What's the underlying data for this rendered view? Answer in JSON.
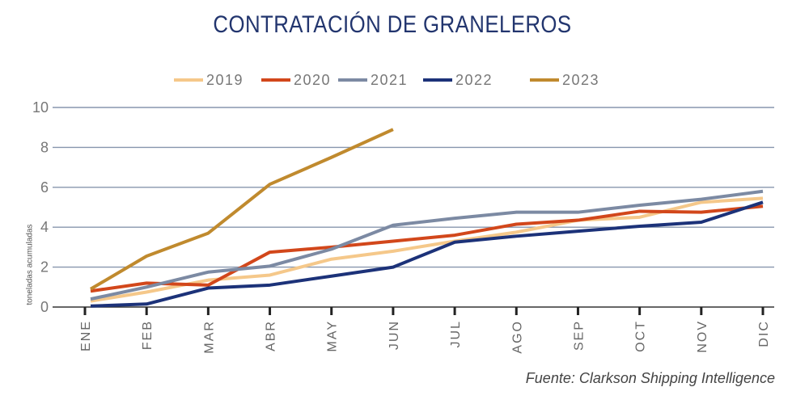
{
  "chart_data": {
    "type": "line",
    "title": "CONTRATACIÓN DE GRANELEROS",
    "xlabel": "",
    "ylabel": "toneladas acumuladas",
    "ylim": [
      0,
      10
    ],
    "yticks": [
      0,
      2,
      4,
      6,
      8,
      10
    ],
    "grid": true,
    "legend_position": "top",
    "categories": [
      "ENE",
      "FEB",
      "MAR",
      "ABR",
      "MAY",
      "JUN",
      "JUL",
      "AGO",
      "SEP",
      "OCT",
      "NOV",
      "DIC"
    ],
    "series": [
      {
        "name": "2019",
        "color": "#f5c88a",
        "values": [
          0.3,
          0.75,
          1.35,
          1.6,
          2.4,
          2.8,
          3.3,
          3.75,
          4.35,
          4.5,
          5.25,
          5.45
        ]
      },
      {
        "name": "2020",
        "color": "#d2471b",
        "values": [
          0.8,
          1.2,
          1.1,
          2.75,
          3.0,
          3.3,
          3.6,
          4.15,
          4.35,
          4.8,
          4.75,
          5.05
        ]
      },
      {
        "name": "2021",
        "color": "#7c8aa3",
        "values": [
          0.4,
          1.0,
          1.75,
          2.05,
          2.9,
          4.1,
          4.45,
          4.75,
          4.75,
          5.1,
          5.4,
          5.8
        ]
      },
      {
        "name": "2022",
        "color": "#1c3279",
        "values": [
          0.05,
          0.15,
          0.95,
          1.1,
          1.55,
          2.0,
          3.25,
          3.55,
          3.8,
          4.05,
          4.25,
          5.25
        ]
      },
      {
        "name": "2023",
        "color": "#c08a2e",
        "values": [
          0.9,
          2.55,
          3.7,
          6.15,
          7.5,
          8.9,
          null,
          null,
          null,
          null,
          null,
          null
        ]
      }
    ],
    "source": "Fuente: Clarkson Shipping Intelligence"
  }
}
